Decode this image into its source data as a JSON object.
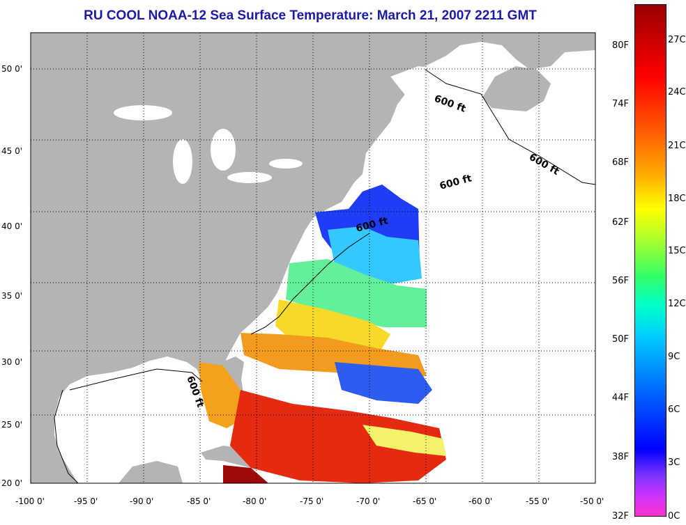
{
  "title": "RU COOL  NOAA-12  Sea Surface Temperature:  March 21, 2007 2211 GMT",
  "lat_labels": [
    "50 0'",
    "45 0'",
    "40 0'",
    "35 0'",
    "30 0'",
    "25 0'",
    "20 0'"
  ],
  "lon_labels": [
    "-100 0'",
    "-95 0'",
    "-90 0'",
    "-85 0'",
    "-80 0'",
    "-75 0'",
    "-70 0'",
    "-65 0'",
    "-60 0'",
    "-55 0'",
    "-50 0'"
  ],
  "contour_label": "600 ft",
  "colorbar": {
    "fahrenheit": [
      "80F",
      "74F",
      "68F",
      "62F",
      "56F",
      "50F",
      "44F",
      "38F",
      "32F"
    ],
    "celsius": [
      "27C",
      "24C",
      "21C",
      "18C",
      "15C",
      "12C",
      "9C",
      "6C",
      "3C",
      "0C"
    ]
  },
  "colors": {
    "land": "#b4b4b4",
    "title": "#1a1aa6",
    "ocean": "#ffffff"
  }
}
